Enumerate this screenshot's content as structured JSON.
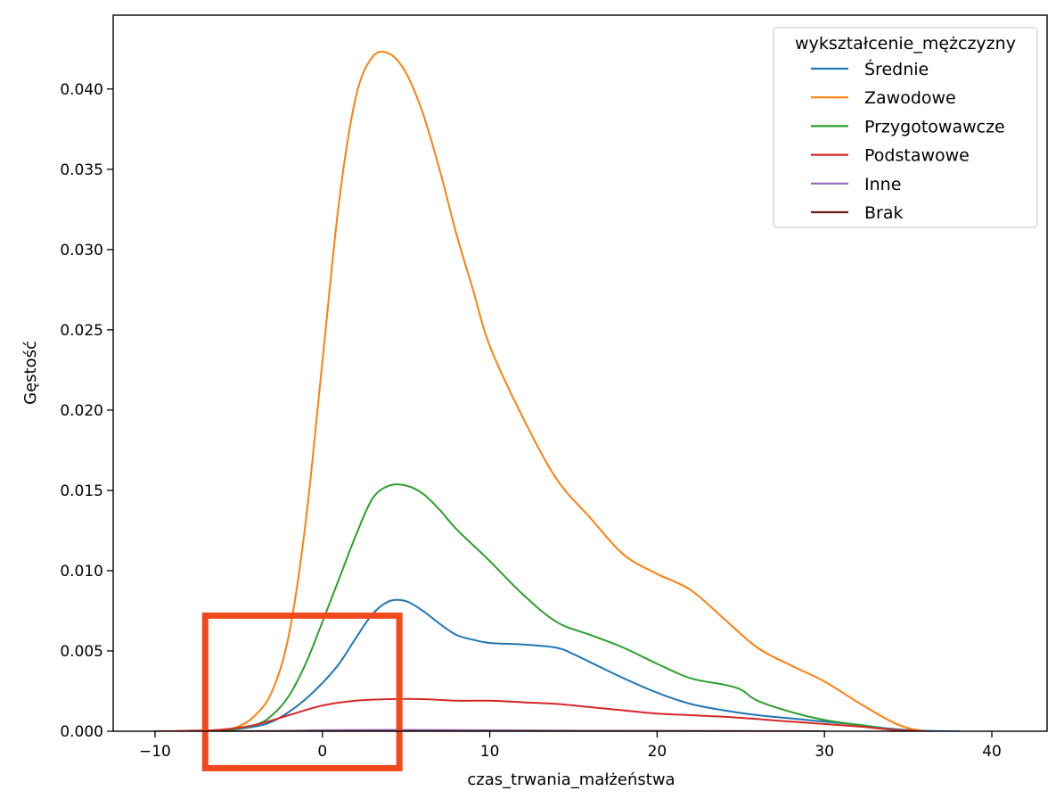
{
  "chart_data": {
    "type": "line",
    "title": "",
    "xlabel": "czas_trwania_małżeństwa",
    "ylabel": "Gęstość",
    "xlim": [
      -12.5,
      43.3
    ],
    "ylim": [
      0,
      0.0446
    ],
    "xticks": [
      -10,
      0,
      10,
      20,
      30,
      40
    ],
    "xtick_labels": [
      "−10",
      "0",
      "10",
      "20",
      "30",
      "40"
    ],
    "yticks": [
      0,
      0.005,
      0.01,
      0.015,
      0.02,
      0.025,
      0.03,
      0.035,
      0.04
    ],
    "ytick_labels": [
      "0.000",
      "0.005",
      "0.010",
      "0.015",
      "0.020",
      "0.025",
      "0.030",
      "0.035",
      "0.040"
    ],
    "grid": false,
    "legend": {
      "title": "wykształcenie_mężczyzny",
      "position": "top-right"
    },
    "series": [
      {
        "name": "Średnie",
        "color": "#1f77b4",
        "points": [
          [
            -8,
            0
          ],
          [
            -6,
            5e-05
          ],
          [
            -4,
            0.0003
          ],
          [
            -3,
            0.0006
          ],
          [
            -2,
            0.0012
          ],
          [
            -1,
            0.002
          ],
          [
            0,
            0.003
          ],
          [
            1,
            0.0042
          ],
          [
            2,
            0.0058
          ],
          [
            3,
            0.0073
          ],
          [
            4,
            0.0081
          ],
          [
            5,
            0.0081
          ],
          [
            6,
            0.0075
          ],
          [
            7,
            0.0067
          ],
          [
            8,
            0.006
          ],
          [
            9,
            0.0057
          ],
          [
            10,
            0.0055
          ],
          [
            12,
            0.0054
          ],
          [
            14,
            0.0052
          ],
          [
            15,
            0.0048
          ],
          [
            16,
            0.0043
          ],
          [
            18,
            0.0033
          ],
          [
            20,
            0.0024
          ],
          [
            22,
            0.0017
          ],
          [
            24,
            0.0013
          ],
          [
            26,
            0.001
          ],
          [
            28,
            0.0008
          ],
          [
            30,
            0.0006
          ],
          [
            32,
            0.0004
          ],
          [
            34,
            0.00015
          ],
          [
            36,
            3e-05
          ],
          [
            38,
            0
          ]
        ]
      },
      {
        "name": "Zawodowe",
        "color": "#ff7f0e",
        "points": [
          [
            -8,
            0
          ],
          [
            -6,
            0.0001
          ],
          [
            -5,
            0.0003
          ],
          [
            -4,
            0.001
          ],
          [
            -3,
            0.0025
          ],
          [
            -2,
            0.006
          ],
          [
            -1,
            0.013
          ],
          [
            0,
            0.023
          ],
          [
            1,
            0.033
          ],
          [
            2,
            0.0395
          ],
          [
            3,
            0.042
          ],
          [
            4,
            0.0422
          ],
          [
            5,
            0.041
          ],
          [
            6,
            0.0385
          ],
          [
            7,
            0.035
          ],
          [
            8,
            0.031
          ],
          [
            9,
            0.0275
          ],
          [
            10,
            0.024
          ],
          [
            12,
            0.0195
          ],
          [
            14,
            0.0157
          ],
          [
            16,
            0.0133
          ],
          [
            18,
            0.011
          ],
          [
            20,
            0.0098
          ],
          [
            22,
            0.0088
          ],
          [
            24,
            0.007
          ],
          [
            26,
            0.0052
          ],
          [
            28,
            0.0041
          ],
          [
            30,
            0.0031
          ],
          [
            32,
            0.0018
          ],
          [
            34,
            0.0006
          ],
          [
            35,
            0.0002
          ],
          [
            36,
            0
          ]
        ]
      },
      {
        "name": "Przygotowawcze",
        "color": "#2ca02c",
        "points": [
          [
            -8,
            0
          ],
          [
            -6,
            5e-05
          ],
          [
            -4,
            0.0004
          ],
          [
            -3,
            0.001
          ],
          [
            -2,
            0.0022
          ],
          [
            -1,
            0.0042
          ],
          [
            0,
            0.0068
          ],
          [
            1,
            0.0095
          ],
          [
            2,
            0.0122
          ],
          [
            3,
            0.0145
          ],
          [
            4,
            0.0153
          ],
          [
            5,
            0.0153
          ],
          [
            6,
            0.0148
          ],
          [
            7,
            0.0138
          ],
          [
            8,
            0.0126
          ],
          [
            10,
            0.0106
          ],
          [
            12,
            0.0085
          ],
          [
            14,
            0.0068
          ],
          [
            16,
            0.006
          ],
          [
            18,
            0.0052
          ],
          [
            20,
            0.0042
          ],
          [
            22,
            0.0033
          ],
          [
            24,
            0.0029
          ],
          [
            25,
            0.0026
          ],
          [
            26,
            0.0019
          ],
          [
            28,
            0.0012
          ],
          [
            30,
            0.0007
          ],
          [
            32,
            0.0004
          ],
          [
            34,
            0.0001
          ],
          [
            35,
            0
          ]
        ]
      },
      {
        "name": "Podstawowe",
        "color": "#d62728",
        "points": [
          [
            -10,
            0
          ],
          [
            -8,
            3e-05
          ],
          [
            -6,
            0.0001
          ],
          [
            -4,
            0.0004
          ],
          [
            -2,
            0.001
          ],
          [
            0,
            0.0016
          ],
          [
            2,
            0.0019
          ],
          [
            4,
            0.002
          ],
          [
            6,
            0.002
          ],
          [
            8,
            0.0019
          ],
          [
            10,
            0.0019
          ],
          [
            12,
            0.0018
          ],
          [
            14,
            0.0017
          ],
          [
            16,
            0.0015
          ],
          [
            18,
            0.0013
          ],
          [
            20,
            0.0011
          ],
          [
            24,
            0.0009
          ],
          [
            28,
            0.0006
          ],
          [
            32,
            0.0003
          ],
          [
            34,
            0.0001
          ],
          [
            36,
            0
          ]
        ]
      },
      {
        "name": "Inne",
        "color": "#9467bd",
        "points": [
          [
            -6,
            0
          ],
          [
            -2,
            3e-05
          ],
          [
            0,
            6e-05
          ],
          [
            4,
            8e-05
          ],
          [
            8,
            7e-05
          ],
          [
            12,
            5e-05
          ],
          [
            16,
            3e-05
          ],
          [
            20,
            2e-05
          ],
          [
            26,
            1e-05
          ],
          [
            30,
            0
          ]
        ]
      },
      {
        "name": "Brak",
        "color": "#6b1e15",
        "points": [
          [
            -6,
            0
          ],
          [
            0,
            1e-05
          ],
          [
            10,
            1e-05
          ],
          [
            20,
            1e-05
          ],
          [
            30,
            0
          ]
        ]
      }
    ],
    "annotation": {
      "type": "rectangle",
      "color": "#f04a1c",
      "x_range": [
        -7,
        4.6
      ],
      "y_range": [
        -0.0023,
        0.0072
      ]
    }
  }
}
